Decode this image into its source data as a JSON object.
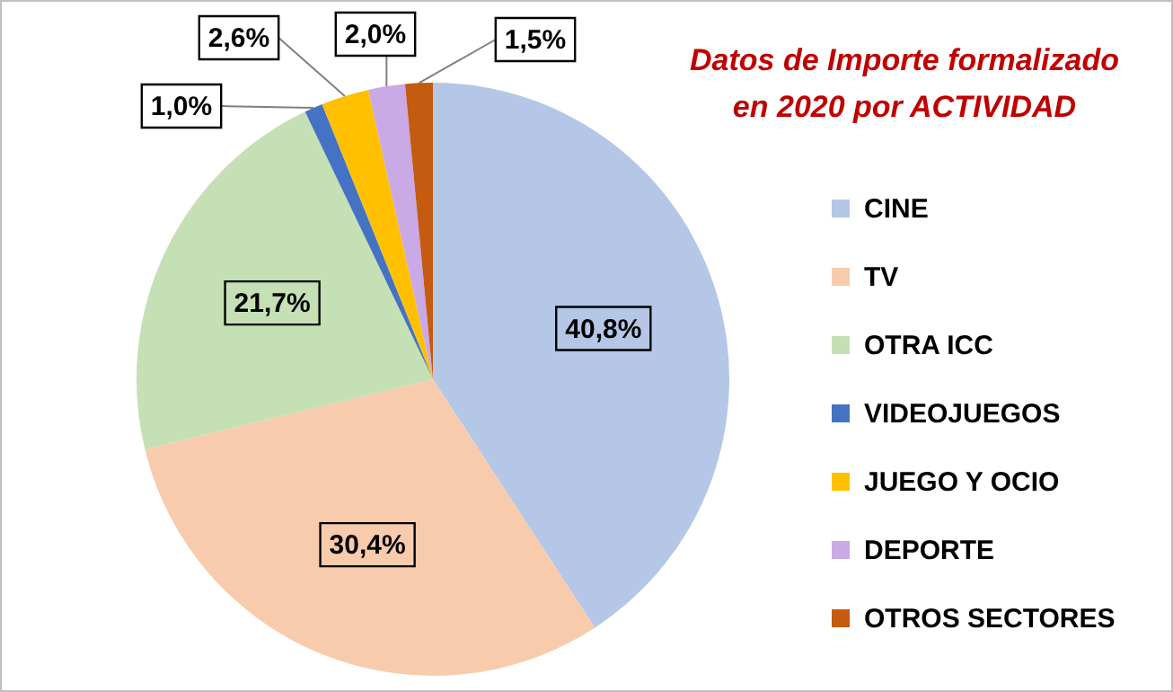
{
  "chart_data": {
    "type": "pie",
    "title": "Datos de Importe formalizado\nen 2020 por ACTIVIDAD",
    "categories": [
      "CINE",
      "TV",
      "OTRA ICC",
      "VIDEOJUEGOS",
      "JUEGO Y OCIO",
      "DEPORTE",
      "OTROS SECTORES"
    ],
    "values": [
      40.8,
      30.4,
      21.7,
      1.0,
      2.6,
      2.0,
      1.5
    ],
    "colors": [
      "#b4c7e7",
      "#f8cbad",
      "#c5e0b4",
      "#4472c4",
      "#ffc000",
      "#c9a9e6",
      "#c55a11"
    ],
    "value_labels": [
      "40,8%",
      "30,4%",
      "21,7%",
      "1,0%",
      "2,6%",
      "2,0%",
      "1,5%"
    ],
    "legend": "right"
  }
}
